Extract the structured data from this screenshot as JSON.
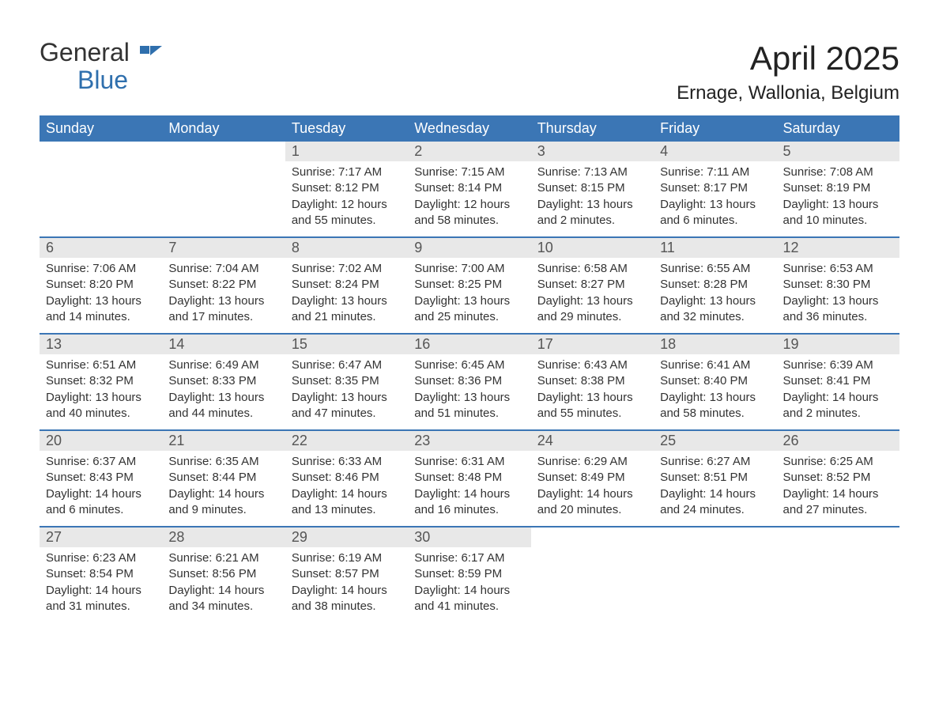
{
  "logo": {
    "text1": "General",
    "text2": "Blue"
  },
  "title": "April 2025",
  "location": "Ernage, Wallonia, Belgium",
  "colors": {
    "header_bg": "#3b76b5",
    "header_text": "#ffffff",
    "daynum_bg": "#e8e8e8",
    "daynum_text": "#555555",
    "body_text": "#333333",
    "week_border": "#3b76b5",
    "logo_blue": "#2f6fad",
    "background": "#ffffff"
  },
  "typography": {
    "title_fontsize": 42,
    "location_fontsize": 24,
    "header_fontsize": 18,
    "daynum_fontsize": 18,
    "content_fontsize": 15
  },
  "day_headers": [
    "Sunday",
    "Monday",
    "Tuesday",
    "Wednesday",
    "Thursday",
    "Friday",
    "Saturday"
  ],
  "weeks": [
    [
      {
        "num": "",
        "sunrise": "",
        "sunset": "",
        "daylight": ""
      },
      {
        "num": "",
        "sunrise": "",
        "sunset": "",
        "daylight": ""
      },
      {
        "num": "1",
        "sunrise": "Sunrise: 7:17 AM",
        "sunset": "Sunset: 8:12 PM",
        "daylight": "Daylight: 12 hours and 55 minutes."
      },
      {
        "num": "2",
        "sunrise": "Sunrise: 7:15 AM",
        "sunset": "Sunset: 8:14 PM",
        "daylight": "Daylight: 12 hours and 58 minutes."
      },
      {
        "num": "3",
        "sunrise": "Sunrise: 7:13 AM",
        "sunset": "Sunset: 8:15 PM",
        "daylight": "Daylight: 13 hours and 2 minutes."
      },
      {
        "num": "4",
        "sunrise": "Sunrise: 7:11 AM",
        "sunset": "Sunset: 8:17 PM",
        "daylight": "Daylight: 13 hours and 6 minutes."
      },
      {
        "num": "5",
        "sunrise": "Sunrise: 7:08 AM",
        "sunset": "Sunset: 8:19 PM",
        "daylight": "Daylight: 13 hours and 10 minutes."
      }
    ],
    [
      {
        "num": "6",
        "sunrise": "Sunrise: 7:06 AM",
        "sunset": "Sunset: 8:20 PM",
        "daylight": "Daylight: 13 hours and 14 minutes."
      },
      {
        "num": "7",
        "sunrise": "Sunrise: 7:04 AM",
        "sunset": "Sunset: 8:22 PM",
        "daylight": "Daylight: 13 hours and 17 minutes."
      },
      {
        "num": "8",
        "sunrise": "Sunrise: 7:02 AM",
        "sunset": "Sunset: 8:24 PM",
        "daylight": "Daylight: 13 hours and 21 minutes."
      },
      {
        "num": "9",
        "sunrise": "Sunrise: 7:00 AM",
        "sunset": "Sunset: 8:25 PM",
        "daylight": "Daylight: 13 hours and 25 minutes."
      },
      {
        "num": "10",
        "sunrise": "Sunrise: 6:58 AM",
        "sunset": "Sunset: 8:27 PM",
        "daylight": "Daylight: 13 hours and 29 minutes."
      },
      {
        "num": "11",
        "sunrise": "Sunrise: 6:55 AM",
        "sunset": "Sunset: 8:28 PM",
        "daylight": "Daylight: 13 hours and 32 minutes."
      },
      {
        "num": "12",
        "sunrise": "Sunrise: 6:53 AM",
        "sunset": "Sunset: 8:30 PM",
        "daylight": "Daylight: 13 hours and 36 minutes."
      }
    ],
    [
      {
        "num": "13",
        "sunrise": "Sunrise: 6:51 AM",
        "sunset": "Sunset: 8:32 PM",
        "daylight": "Daylight: 13 hours and 40 minutes."
      },
      {
        "num": "14",
        "sunrise": "Sunrise: 6:49 AM",
        "sunset": "Sunset: 8:33 PM",
        "daylight": "Daylight: 13 hours and 44 minutes."
      },
      {
        "num": "15",
        "sunrise": "Sunrise: 6:47 AM",
        "sunset": "Sunset: 8:35 PM",
        "daylight": "Daylight: 13 hours and 47 minutes."
      },
      {
        "num": "16",
        "sunrise": "Sunrise: 6:45 AM",
        "sunset": "Sunset: 8:36 PM",
        "daylight": "Daylight: 13 hours and 51 minutes."
      },
      {
        "num": "17",
        "sunrise": "Sunrise: 6:43 AM",
        "sunset": "Sunset: 8:38 PM",
        "daylight": "Daylight: 13 hours and 55 minutes."
      },
      {
        "num": "18",
        "sunrise": "Sunrise: 6:41 AM",
        "sunset": "Sunset: 8:40 PM",
        "daylight": "Daylight: 13 hours and 58 minutes."
      },
      {
        "num": "19",
        "sunrise": "Sunrise: 6:39 AM",
        "sunset": "Sunset: 8:41 PM",
        "daylight": "Daylight: 14 hours and 2 minutes."
      }
    ],
    [
      {
        "num": "20",
        "sunrise": "Sunrise: 6:37 AM",
        "sunset": "Sunset: 8:43 PM",
        "daylight": "Daylight: 14 hours and 6 minutes."
      },
      {
        "num": "21",
        "sunrise": "Sunrise: 6:35 AM",
        "sunset": "Sunset: 8:44 PM",
        "daylight": "Daylight: 14 hours and 9 minutes."
      },
      {
        "num": "22",
        "sunrise": "Sunrise: 6:33 AM",
        "sunset": "Sunset: 8:46 PM",
        "daylight": "Daylight: 14 hours and 13 minutes."
      },
      {
        "num": "23",
        "sunrise": "Sunrise: 6:31 AM",
        "sunset": "Sunset: 8:48 PM",
        "daylight": "Daylight: 14 hours and 16 minutes."
      },
      {
        "num": "24",
        "sunrise": "Sunrise: 6:29 AM",
        "sunset": "Sunset: 8:49 PM",
        "daylight": "Daylight: 14 hours and 20 minutes."
      },
      {
        "num": "25",
        "sunrise": "Sunrise: 6:27 AM",
        "sunset": "Sunset: 8:51 PM",
        "daylight": "Daylight: 14 hours and 24 minutes."
      },
      {
        "num": "26",
        "sunrise": "Sunrise: 6:25 AM",
        "sunset": "Sunset: 8:52 PM",
        "daylight": "Daylight: 14 hours and 27 minutes."
      }
    ],
    [
      {
        "num": "27",
        "sunrise": "Sunrise: 6:23 AM",
        "sunset": "Sunset: 8:54 PM",
        "daylight": "Daylight: 14 hours and 31 minutes."
      },
      {
        "num": "28",
        "sunrise": "Sunrise: 6:21 AM",
        "sunset": "Sunset: 8:56 PM",
        "daylight": "Daylight: 14 hours and 34 minutes."
      },
      {
        "num": "29",
        "sunrise": "Sunrise: 6:19 AM",
        "sunset": "Sunset: 8:57 PM",
        "daylight": "Daylight: 14 hours and 38 minutes."
      },
      {
        "num": "30",
        "sunrise": "Sunrise: 6:17 AM",
        "sunset": "Sunset: 8:59 PM",
        "daylight": "Daylight: 14 hours and 41 minutes."
      },
      {
        "num": "",
        "sunrise": "",
        "sunset": "",
        "daylight": ""
      },
      {
        "num": "",
        "sunrise": "",
        "sunset": "",
        "daylight": ""
      },
      {
        "num": "",
        "sunrise": "",
        "sunset": "",
        "daylight": ""
      }
    ]
  ]
}
